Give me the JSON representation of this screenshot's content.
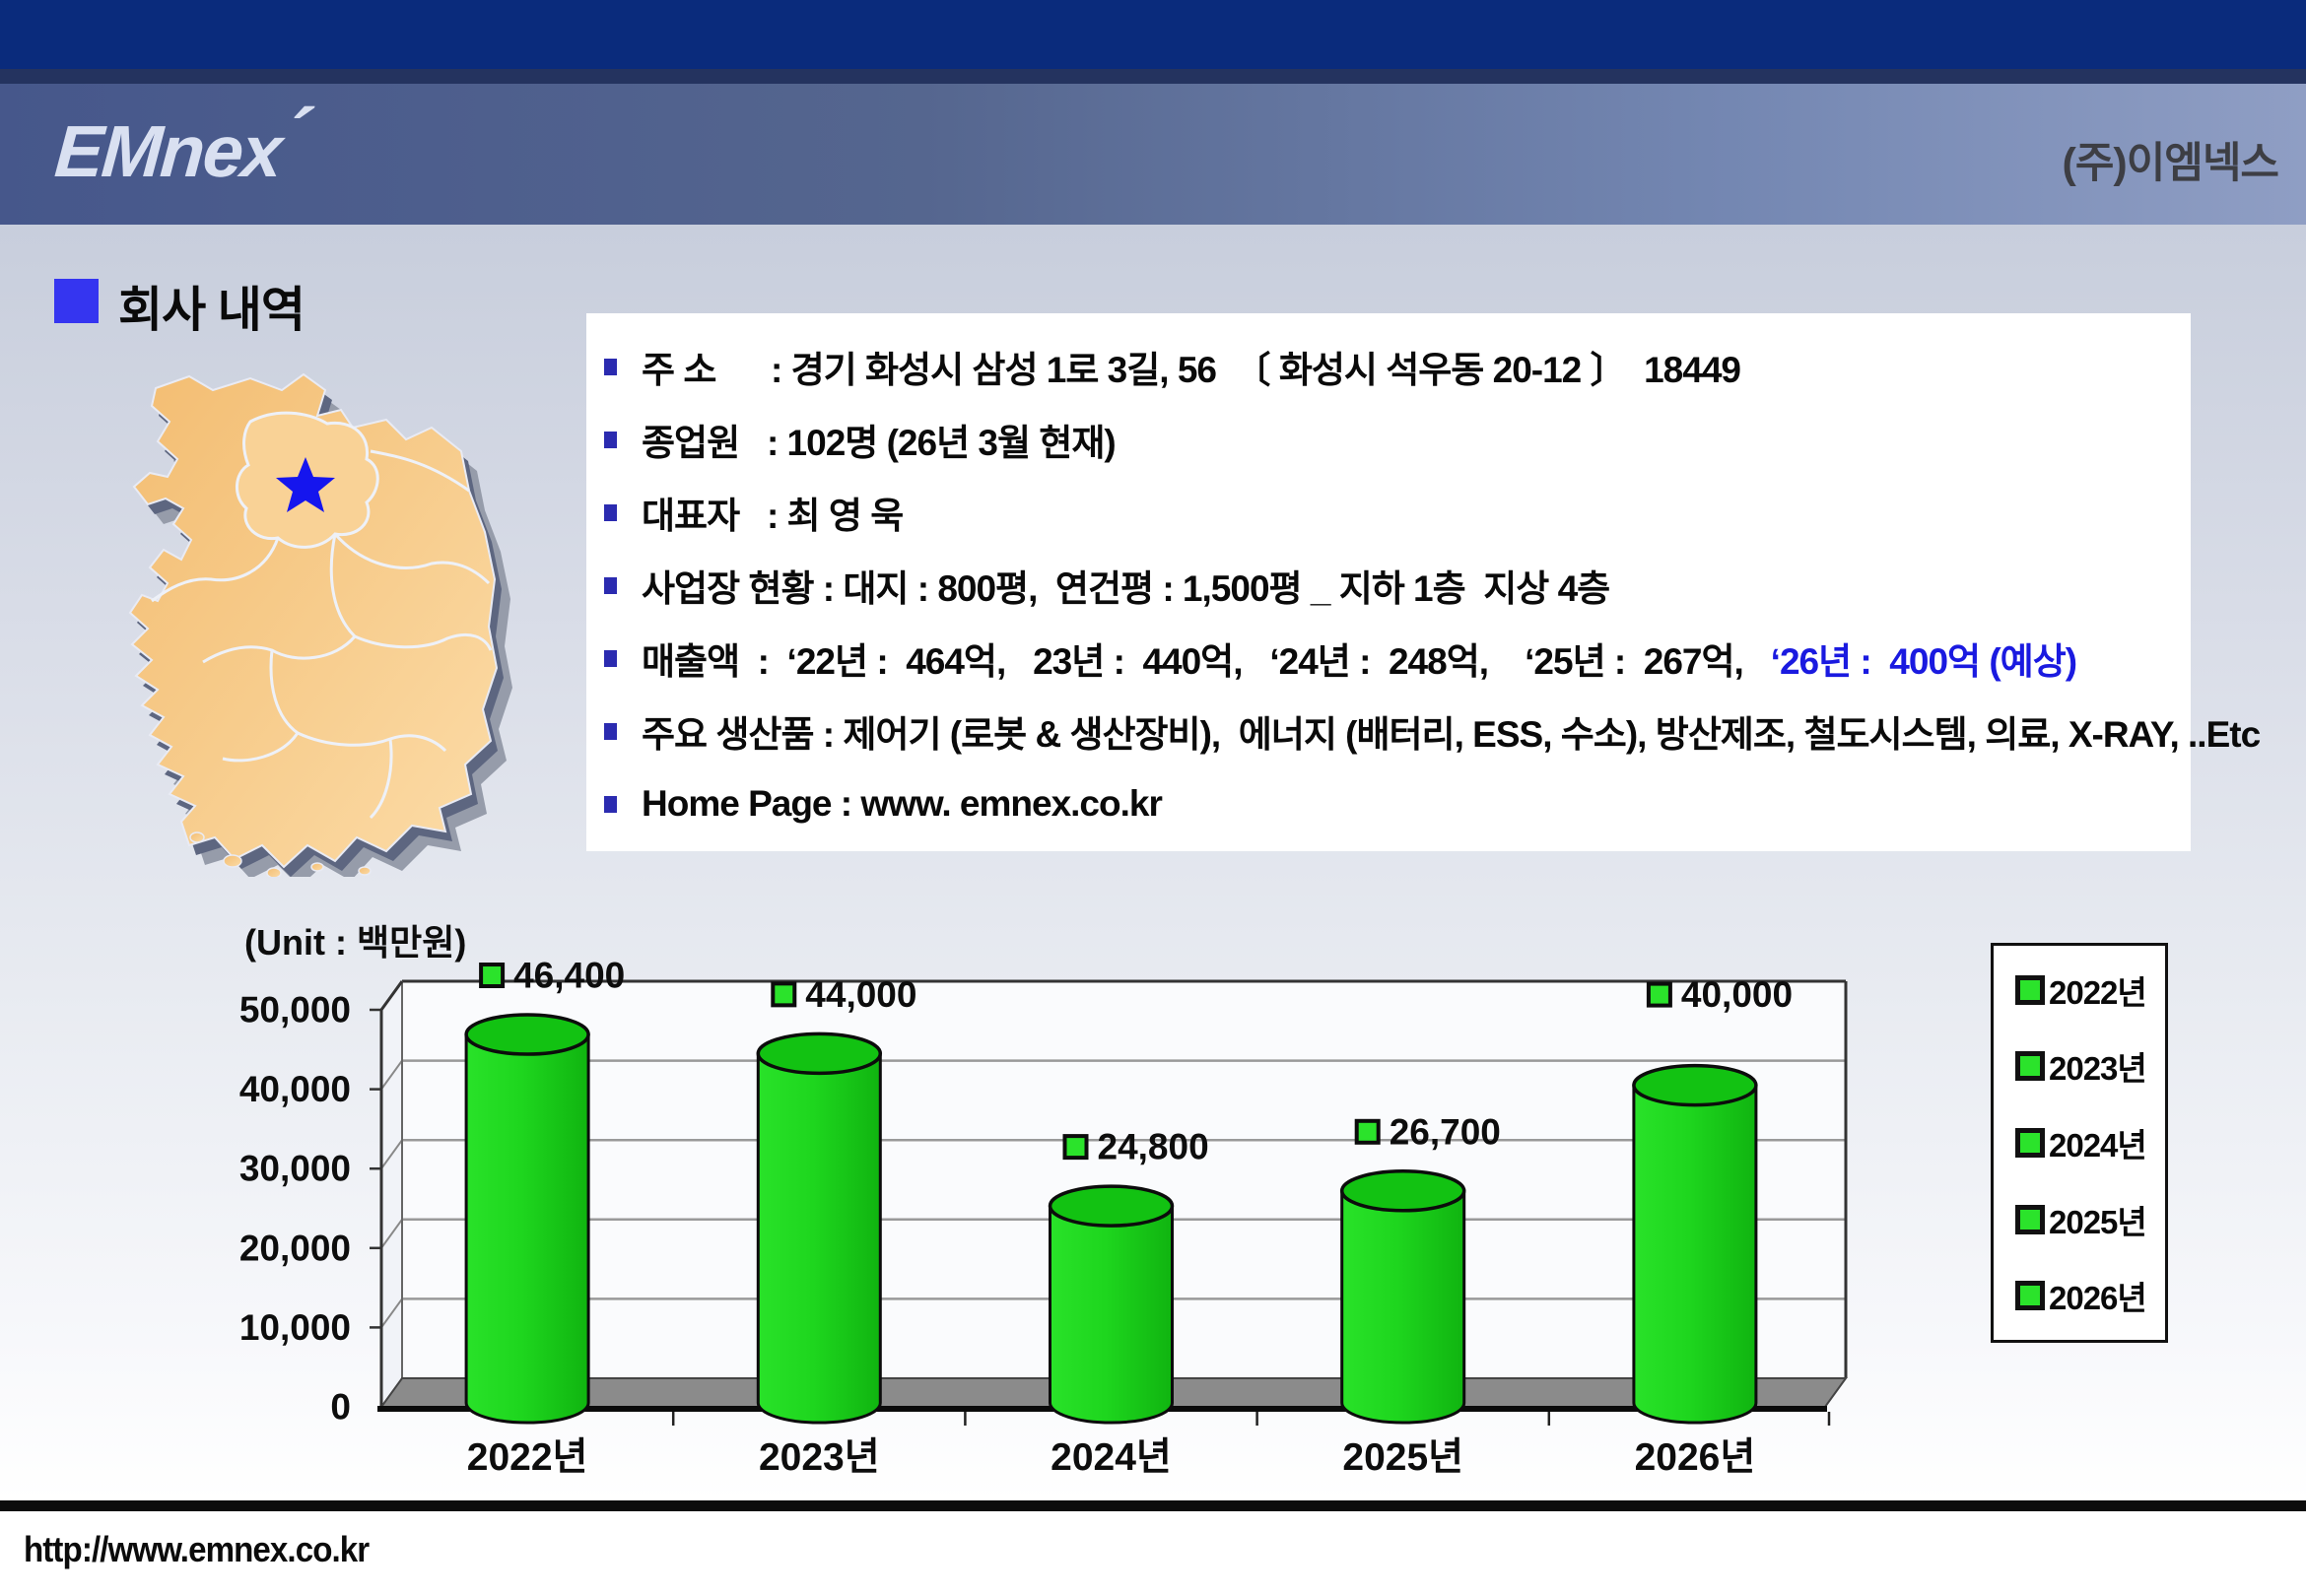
{
  "header": {
    "logo_text": "EMnex",
    "logo_accent": "´",
    "company_name": "(주)이엠넥스"
  },
  "section": {
    "title": "회사 내역"
  },
  "info": {
    "items": [
      {
        "text": "주 소      : 경기 화성시 삼성 1로 3길, 56  〔 화성시 석우동 20-12 〕  18449",
        "highlight": ""
      },
      {
        "text": "종업원   : 102명 (26년 3월 현재)",
        "highlight": ""
      },
      {
        "text": "대표자   : 최 영 욱",
        "highlight": ""
      },
      {
        "text": "사업장 현황 : 대지 : 800평,  연건평 : 1,500평 _ 지하 1층  지상 4층",
        "highlight": ""
      },
      {
        "text": "매출액  :  ‘22년 :  464억,   23년 :  440억,   ‘24년 :  248억,    ‘25년 :  267억,   ",
        "highlight": "‘26년 :  400억 (예상)"
      },
      {
        "text": "주요 생산품 : 제어기 (로봇 & 생산장비),  에너지 (배터리, ESS, 수소), 방산제조, 철도시스템, 의료, X-RAY, ..Etc",
        "highlight": ""
      },
      {
        "text": "Home Page : www. emnex.co.kr",
        "highlight": ""
      }
    ]
  },
  "chart_data": {
    "type": "bar",
    "style": "3d-cylinder",
    "title": "",
    "unit_label": "(Unit : 백만원)",
    "categories": [
      "2022년",
      "2023년",
      "2024년",
      "2025년",
      "2026년"
    ],
    "values": [
      46400,
      44000,
      24800,
      26700,
      40000
    ],
    "data_labels": [
      "46,400",
      "44,000",
      "24,800",
      "26,700",
      "40,000"
    ],
    "y_ticks": [
      "0",
      "10,000",
      "20,000",
      "30,000",
      "40,000",
      "50,000"
    ],
    "ylim": [
      0,
      50000
    ],
    "grid": true,
    "legend": [
      "2022년",
      "2023년",
      "2024년",
      "2025년",
      "2026년"
    ],
    "legend_position": "right",
    "bar_color": "#1ed61e",
    "bar_top_color": "#12c212",
    "marker_color": "#2be32b"
  },
  "footer": {
    "url": "http://www.emnex.co.kr"
  }
}
